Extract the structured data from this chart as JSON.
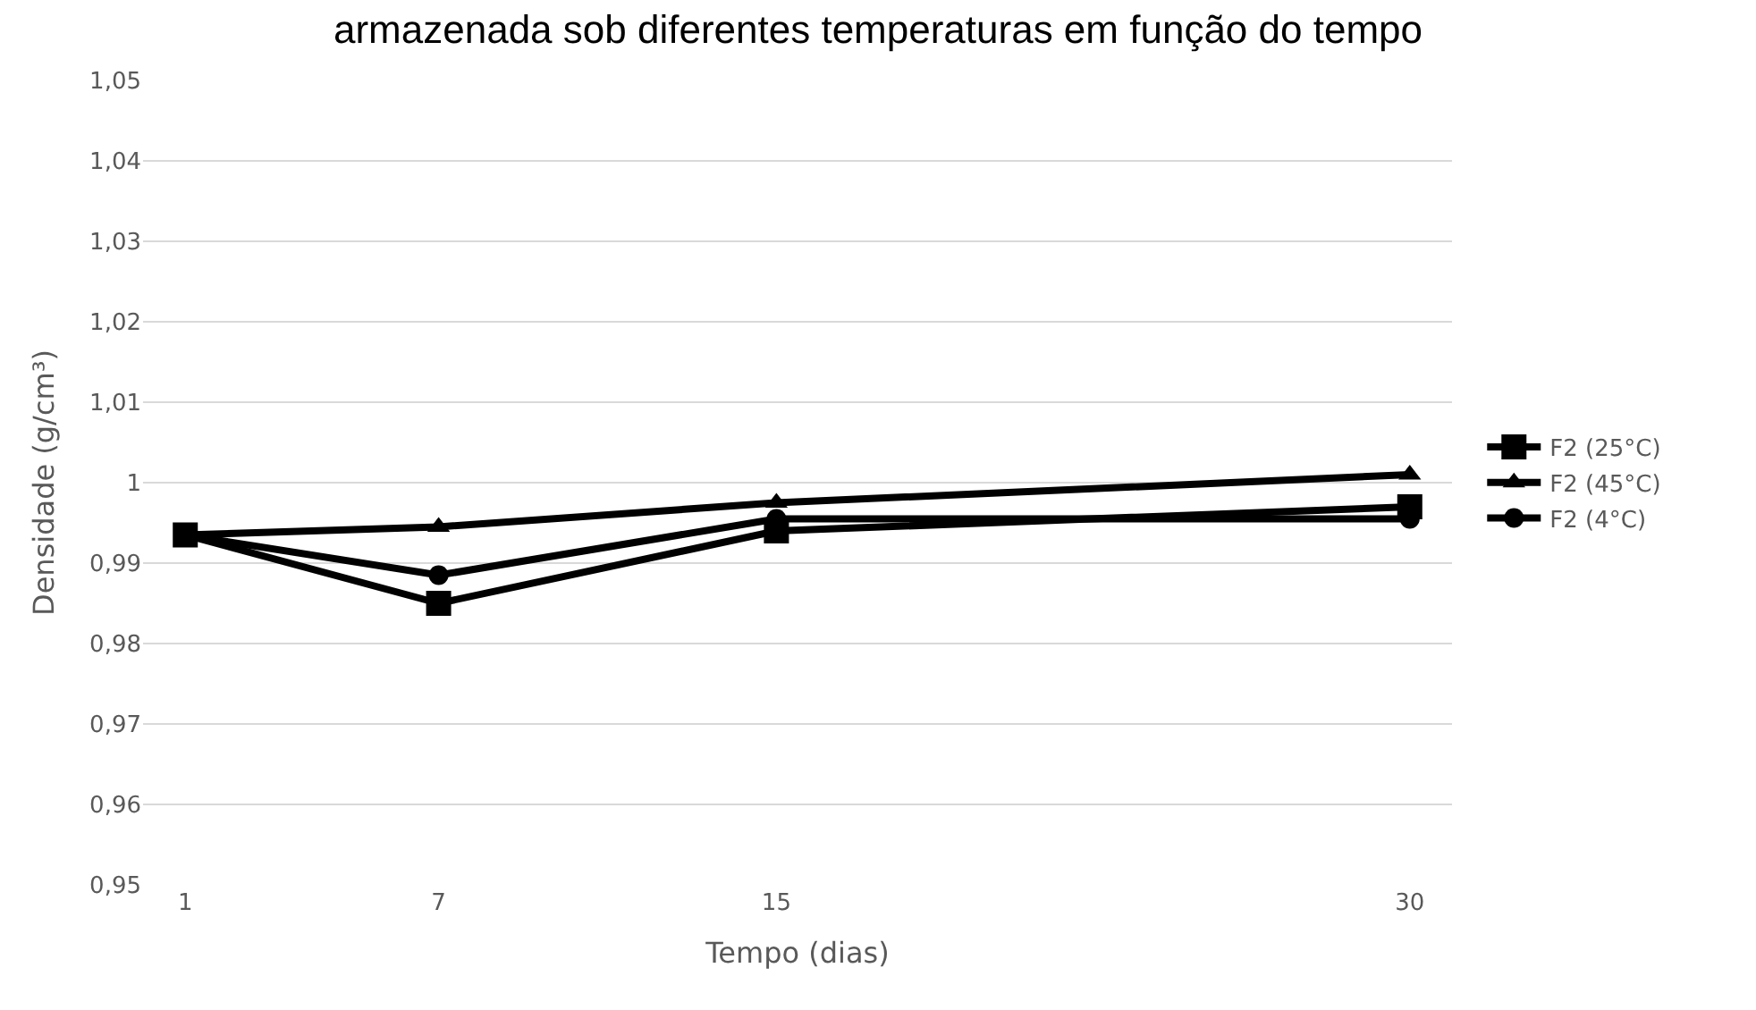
{
  "chart_data": {
    "type": "line",
    "title": "armazenada sob diferentes temperaturas em função do tempo",
    "xlabel": "Tempo (dias)",
    "ylabel": "Densidade (g/cm³)",
    "x": [
      1,
      7,
      15,
      30
    ],
    "xlim": [
      0,
      31
    ],
    "xticks": [
      1,
      7,
      15,
      30
    ],
    "ylim": [
      0.95,
      1.05
    ],
    "yticks": [
      {
        "value": 0.95,
        "label": "0,95"
      },
      {
        "value": 0.96,
        "label": "0,96"
      },
      {
        "value": 0.97,
        "label": "0,97"
      },
      {
        "value": 0.98,
        "label": "0,98"
      },
      {
        "value": 0.99,
        "label": "0,99"
      },
      {
        "value": 1.0,
        "label": "1"
      },
      {
        "value": 1.01,
        "label": "1,01"
      },
      {
        "value": 1.02,
        "label": "1,02"
      },
      {
        "value": 1.03,
        "label": "1,03"
      },
      {
        "value": 1.04,
        "label": "1,04"
      },
      {
        "value": 1.05,
        "label": "1,05"
      }
    ],
    "series": [
      {
        "name": "F2 (25°C)",
        "color": "#000000",
        "marker": "square",
        "values": [
          0.9935,
          0.985,
          0.994,
          0.997
        ]
      },
      {
        "name": "F2 (45°C)",
        "color": "#000000",
        "marker": "triangle",
        "values": [
          0.9935,
          0.9945,
          0.9975,
          1.001
        ]
      },
      {
        "name": "F2 (4°C)",
        "color": "#000000",
        "marker": "circle",
        "values": [
          0.9935,
          0.9885,
          0.9955,
          0.9955
        ]
      }
    ],
    "grid": "y",
    "legend": "right",
    "line_style": "solid"
  }
}
